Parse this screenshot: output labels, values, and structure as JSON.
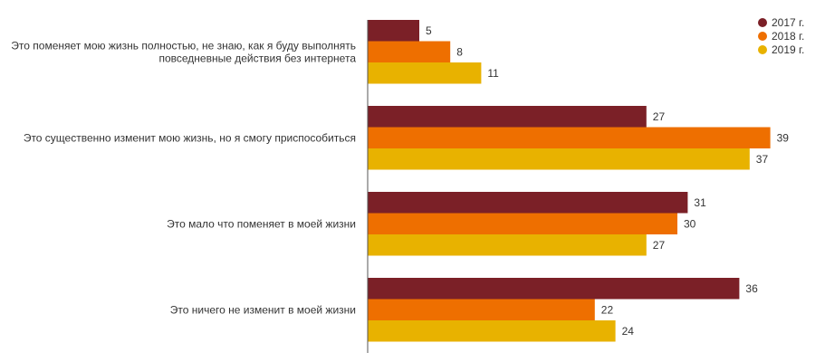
{
  "chart_data": {
    "type": "bar",
    "orientation": "horizontal",
    "categories": [
      [
        "Это поменяет мою жизнь полностью, не знаю, как я буду выполнять",
        "повседневные действия без интернета"
      ],
      [
        "Это существенно изменит мою жизнь, но я смогу приспособиться"
      ],
      [
        "Это мало что поменяет в моей жизни"
      ],
      [
        "Это ничего не изменит в моей жизни"
      ]
    ],
    "series": [
      {
        "name": "2017 г.",
        "color": "#7b2027",
        "values": [
          5,
          27,
          31,
          36
        ]
      },
      {
        "name": "2018 г.",
        "color": "#ee6f00",
        "values": [
          8,
          39,
          30,
          22
        ]
      },
      {
        "name": "2019 г.",
        "color": "#e8b200",
        "values": [
          11,
          37,
          27,
          24
        ]
      }
    ],
    "xlim": [
      0,
      40
    ],
    "grid": false,
    "legend_position": "top-right",
    "data_labels": true,
    "axis_color": "#555555"
  }
}
